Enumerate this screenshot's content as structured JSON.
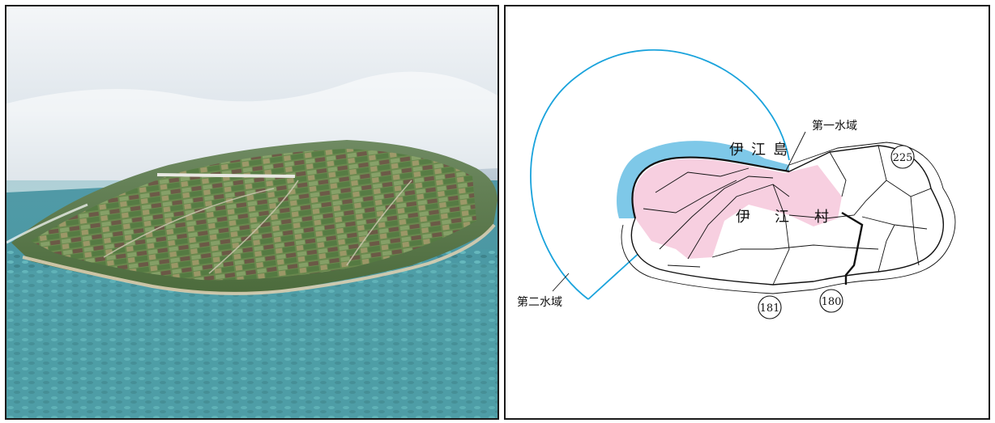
{
  "map": {
    "water_zone_1_label": "第一水域",
    "water_zone_2_label": "第二水域",
    "island_name": "伊江島",
    "island_name_chars": [
      "伊",
      "江",
      "島"
    ],
    "village_name": "伊江村",
    "village_name_chars": [
      "伊",
      "江",
      "村"
    ],
    "area_codes": [
      "225",
      "181",
      "180"
    ],
    "colors": {
      "zone_1_fill": "#7ec8e8",
      "zone_2_line": "#1aa3dc",
      "village_area_fill": "#f7cfe0",
      "boundary_line": "#111111"
    }
  }
}
